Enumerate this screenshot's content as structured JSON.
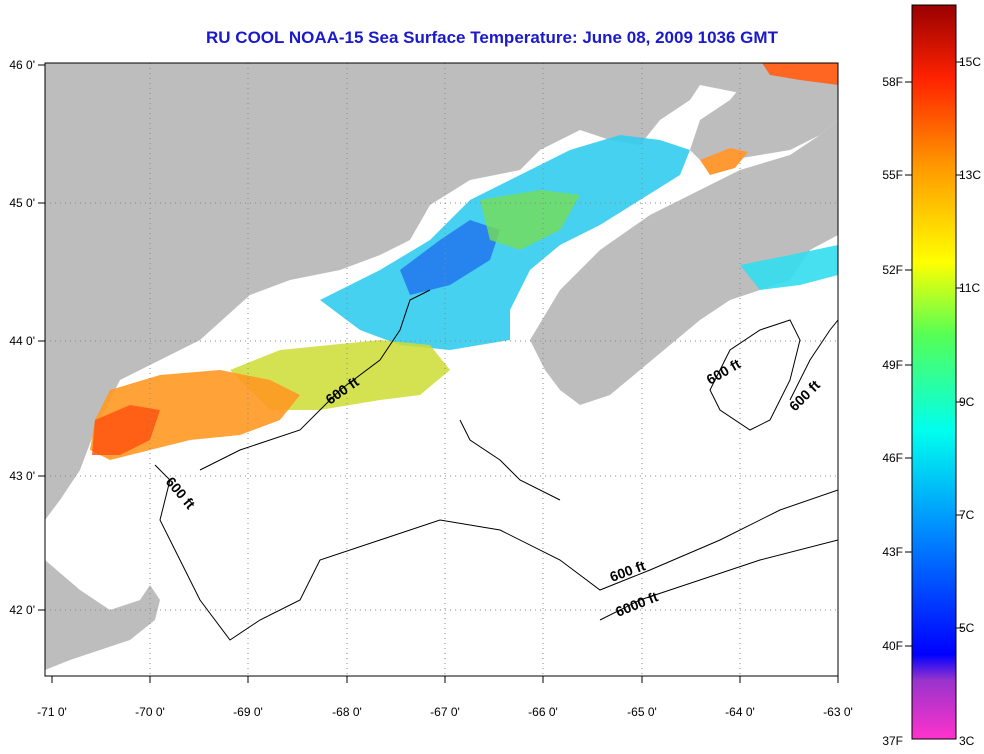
{
  "title": "RU COOL  NOAA-15  Sea Surface Temperature:  June 08, 2009 1036 GMT",
  "map": {
    "lon_ticks": [
      "-71 0'",
      "-70 0'",
      "-69 0'",
      "-68 0'",
      "-67 0'",
      "-66 0'",
      "-65 0'",
      "-64 0'",
      "-63 0'"
    ],
    "lat_ticks": [
      "46 0'",
      "45 0'",
      "44 0'",
      "43 0'",
      "42 0'"
    ],
    "land_color": "#bdbdbd",
    "contour_labels": [
      "600 ft",
      "600 ft",
      "600 ft",
      "600 ft",
      "600 ft",
      "6000 ft"
    ]
  },
  "colorbar": {
    "fahrenheit_labels": [
      "58F",
      "55F",
      "52F",
      "49F",
      "46F",
      "43F",
      "40F",
      "37F"
    ],
    "celsius_labels": [
      "15C",
      "13C",
      "11C",
      "9C",
      "7C",
      "5C",
      "3C"
    ]
  }
}
